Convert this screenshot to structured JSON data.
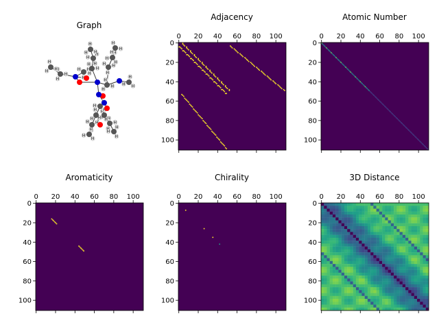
{
  "figure": {
    "panels": [
      {
        "id": "graph",
        "title": "Graph"
      },
      {
        "id": "adjacency",
        "title": "Adjacency"
      },
      {
        "id": "atomic_number",
        "title": "Atomic Number"
      },
      {
        "id": "aromaticity",
        "title": "Aromaticity"
      },
      {
        "id": "chirality",
        "title": "Chirality"
      },
      {
        "id": "distance",
        "title": "3D Distance"
      }
    ]
  },
  "chart_data": [
    {
      "type": "heatmap",
      "panel": "adjacency",
      "title": "Adjacency",
      "matrix_size": 111,
      "colormap": "viridis",
      "x_ticks": [
        0,
        20,
        40,
        60,
        80,
        100
      ],
      "y_ticks": [
        0,
        20,
        40,
        60,
        80,
        100
      ],
      "x_axis_position": "top",
      "bands": [
        {
          "from": [
            0,
            3
          ],
          "to": [
            50,
            53
          ],
          "note": "diagonal band near main diagonal"
        },
        {
          "from": [
            3,
            53
          ],
          "to": [
            50,
            110
          ],
          "note": "off-diagonal band"
        },
        {
          "from": [
            53,
            3
          ],
          "to": [
            110,
            50
          ],
          "note": "symmetric off-diagonal band"
        }
      ]
    },
    {
      "type": "heatmap",
      "panel": "atomic_number",
      "title": "Atomic Number",
      "matrix_size": 111,
      "colormap": "viridis",
      "x_ticks": [
        0,
        20,
        40,
        60,
        80,
        100
      ],
      "y_ticks": [
        0,
        20,
        40,
        60,
        80,
        100
      ],
      "x_axis_position": "top",
      "pattern": "diagonal only"
    },
    {
      "type": "heatmap",
      "panel": "aromaticity",
      "title": "Aromaticity",
      "matrix_size": 111,
      "colormap": "viridis",
      "x_ticks": [
        0,
        20,
        40,
        60,
        80,
        100
      ],
      "y_ticks": [
        0,
        20,
        40,
        60,
        80,
        100
      ],
      "x_axis_position": "top",
      "active_cells": [
        [
          16,
          16
        ],
        [
          17,
          17
        ],
        [
          18,
          18
        ],
        [
          19,
          19
        ],
        [
          20,
          20
        ],
        [
          21,
          21
        ],
        [
          44,
          44
        ],
        [
          45,
          45
        ],
        [
          46,
          46
        ],
        [
          47,
          47
        ],
        [
          48,
          48
        ],
        [
          49,
          49
        ]
      ]
    },
    {
      "type": "heatmap",
      "panel": "chirality",
      "title": "Chirality",
      "matrix_size": 111,
      "colormap": "viridis",
      "x_ticks": [
        0,
        20,
        40,
        60,
        80,
        100
      ],
      "y_ticks": [
        0,
        20,
        40,
        60,
        80,
        100
      ],
      "x_axis_position": "top",
      "active_cells": [
        [
          7,
          7
        ],
        [
          26,
          26
        ],
        [
          35,
          35
        ],
        [
          42,
          42
        ]
      ]
    },
    {
      "type": "heatmap",
      "panel": "distance",
      "title": "3D Distance",
      "matrix_size": 111,
      "colormap": "viridis",
      "x_ticks": [
        0,
        20,
        40,
        60,
        80,
        100
      ],
      "y_ticks": [
        0,
        20,
        40,
        60,
        80,
        100
      ],
      "x_axis_position": "top",
      "pattern": "dense distance matrix with dark diagonal"
    }
  ],
  "graph": {
    "colors": {
      "carbon": "#555555",
      "hydrogen": "#dddddd",
      "oxygen": "#ff0000",
      "nitrogen": "#0000cc"
    },
    "atom_label": "H"
  }
}
